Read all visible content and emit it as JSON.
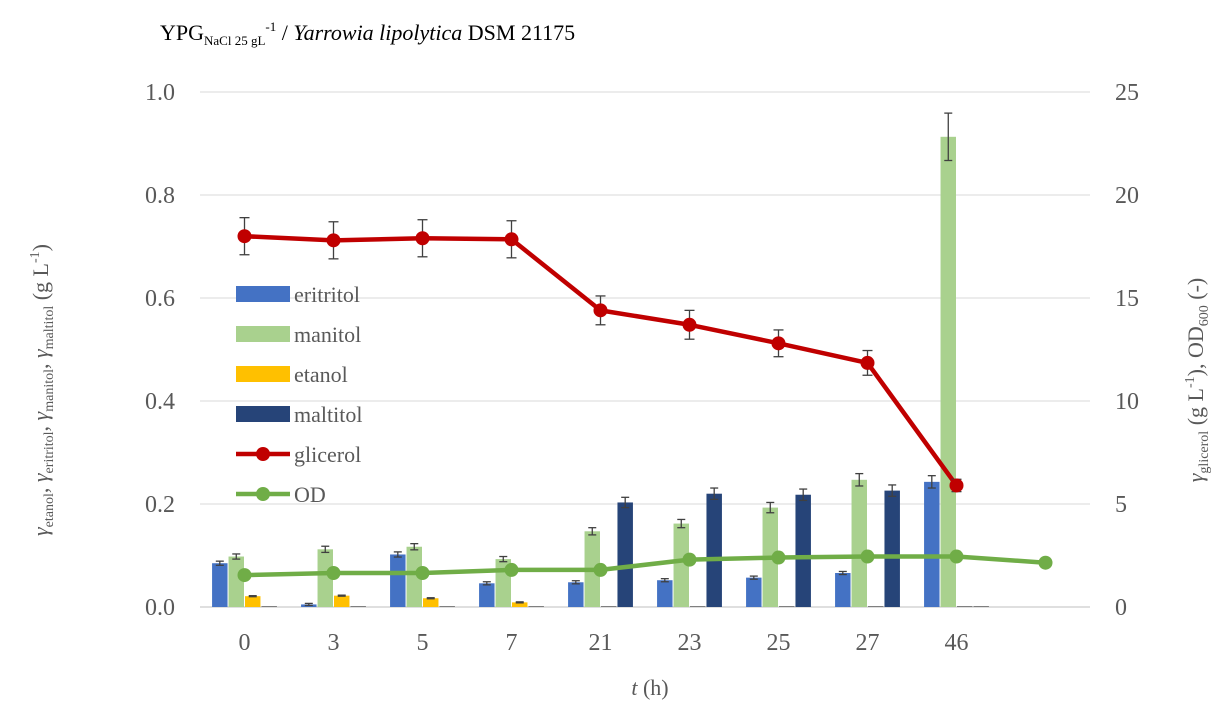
{
  "chart_data": {
    "type": "bar",
    "title": {
      "main": "YPG",
      "main_sub": "NaCl 25 gL",
      "main_sup": "-1",
      "rest": " / ",
      "organism": "Yarrowia lipolytica",
      "strain": " DSM 21175"
    },
    "xlabel": {
      "var": "t",
      "unit": " (h)"
    },
    "ylabel_left": {
      "parts": [
        {
          "sym": "γ",
          "sub": "etanol",
          "sep": ", "
        },
        {
          "sym": "γ",
          "sub": "eritritol",
          "sep": ", "
        },
        {
          "sym": "γ",
          "sub": "manitol",
          "sep": ", "
        },
        {
          "sym": "γ",
          "sub": "maltitol",
          "sep": " "
        }
      ],
      "unit": "(g L",
      "unit_sup": "-1",
      "unit_end": ")"
    },
    "ylabel_right": {
      "sym": "γ",
      "sub": "glicerol",
      "unit": " (g L",
      "unit_sup": "-1",
      "mid": "), OD",
      "od_sub": "600",
      "end": " (-)"
    },
    "categories": [
      "0",
      "3",
      "5",
      "7",
      "21",
      "23",
      "25",
      "27",
      "46",
      ""
    ],
    "ylim_left": [
      0,
      1.0
    ],
    "yticks_left": [
      "0.0",
      "0.2",
      "0.4",
      "0.6",
      "0.8",
      "1.0"
    ],
    "ylim_right": [
      0,
      25
    ],
    "yticks_right": [
      "0",
      "5",
      "10",
      "15",
      "20",
      "25"
    ],
    "grid": true,
    "legend_position": "left-middle",
    "bar_series": [
      {
        "name": "eritritol",
        "color": "#4472C4",
        "values": [
          0.085,
          0.005,
          0.102,
          0.046,
          0.048,
          0.052,
          0.057,
          0.066,
          0.243,
          null
        ],
        "errors": [
          0.004,
          0.002,
          0.005,
          0.003,
          0.003,
          0.003,
          0.003,
          0.003,
          0.012,
          null
        ]
      },
      {
        "name": "manitol",
        "color": "#A9D18E",
        "values": [
          0.098,
          0.112,
          0.117,
          0.093,
          0.147,
          0.162,
          0.193,
          0.247,
          0.913,
          null
        ],
        "errors": [
          0.005,
          0.006,
          0.006,
          0.005,
          0.007,
          0.008,
          0.01,
          0.012,
          0.046,
          null
        ]
      },
      {
        "name": "etanol",
        "color": "#FFC000",
        "values": [
          0.021,
          0.022,
          0.017,
          0.009,
          0.0,
          0.0,
          0.0,
          0.0,
          0.0,
          null
        ],
        "errors": [
          0.001,
          0.001,
          0.001,
          0.001,
          0.0,
          0.0,
          0.0,
          0.0,
          0.0,
          null
        ]
      },
      {
        "name": "maltitol",
        "color": "#264478",
        "values": [
          0.0,
          0.0,
          0.0,
          0.0,
          0.203,
          0.22,
          0.218,
          0.226,
          0.0,
          null
        ],
        "errors": [
          0.0,
          0.0,
          0.0,
          0.0,
          0.01,
          0.011,
          0.011,
          0.011,
          0.0,
          null
        ]
      }
    ],
    "line_series": [
      {
        "name": "glicerol",
        "color": "#C00000",
        "axis": "right",
        "values": [
          18.0,
          17.8,
          17.9,
          17.85,
          14.4,
          13.7,
          12.8,
          11.85,
          5.9,
          null
        ],
        "errors": [
          0.9,
          0.9,
          0.9,
          0.9,
          0.7,
          0.7,
          0.65,
          0.6,
          0.3,
          null
        ]
      },
      {
        "name": "OD",
        "color": "#70AD47",
        "axis": "right",
        "values": [
          1.55,
          1.65,
          1.65,
          1.8,
          1.8,
          2.3,
          2.4,
          2.45,
          2.45,
          2.15
        ],
        "errors": null
      }
    ]
  }
}
